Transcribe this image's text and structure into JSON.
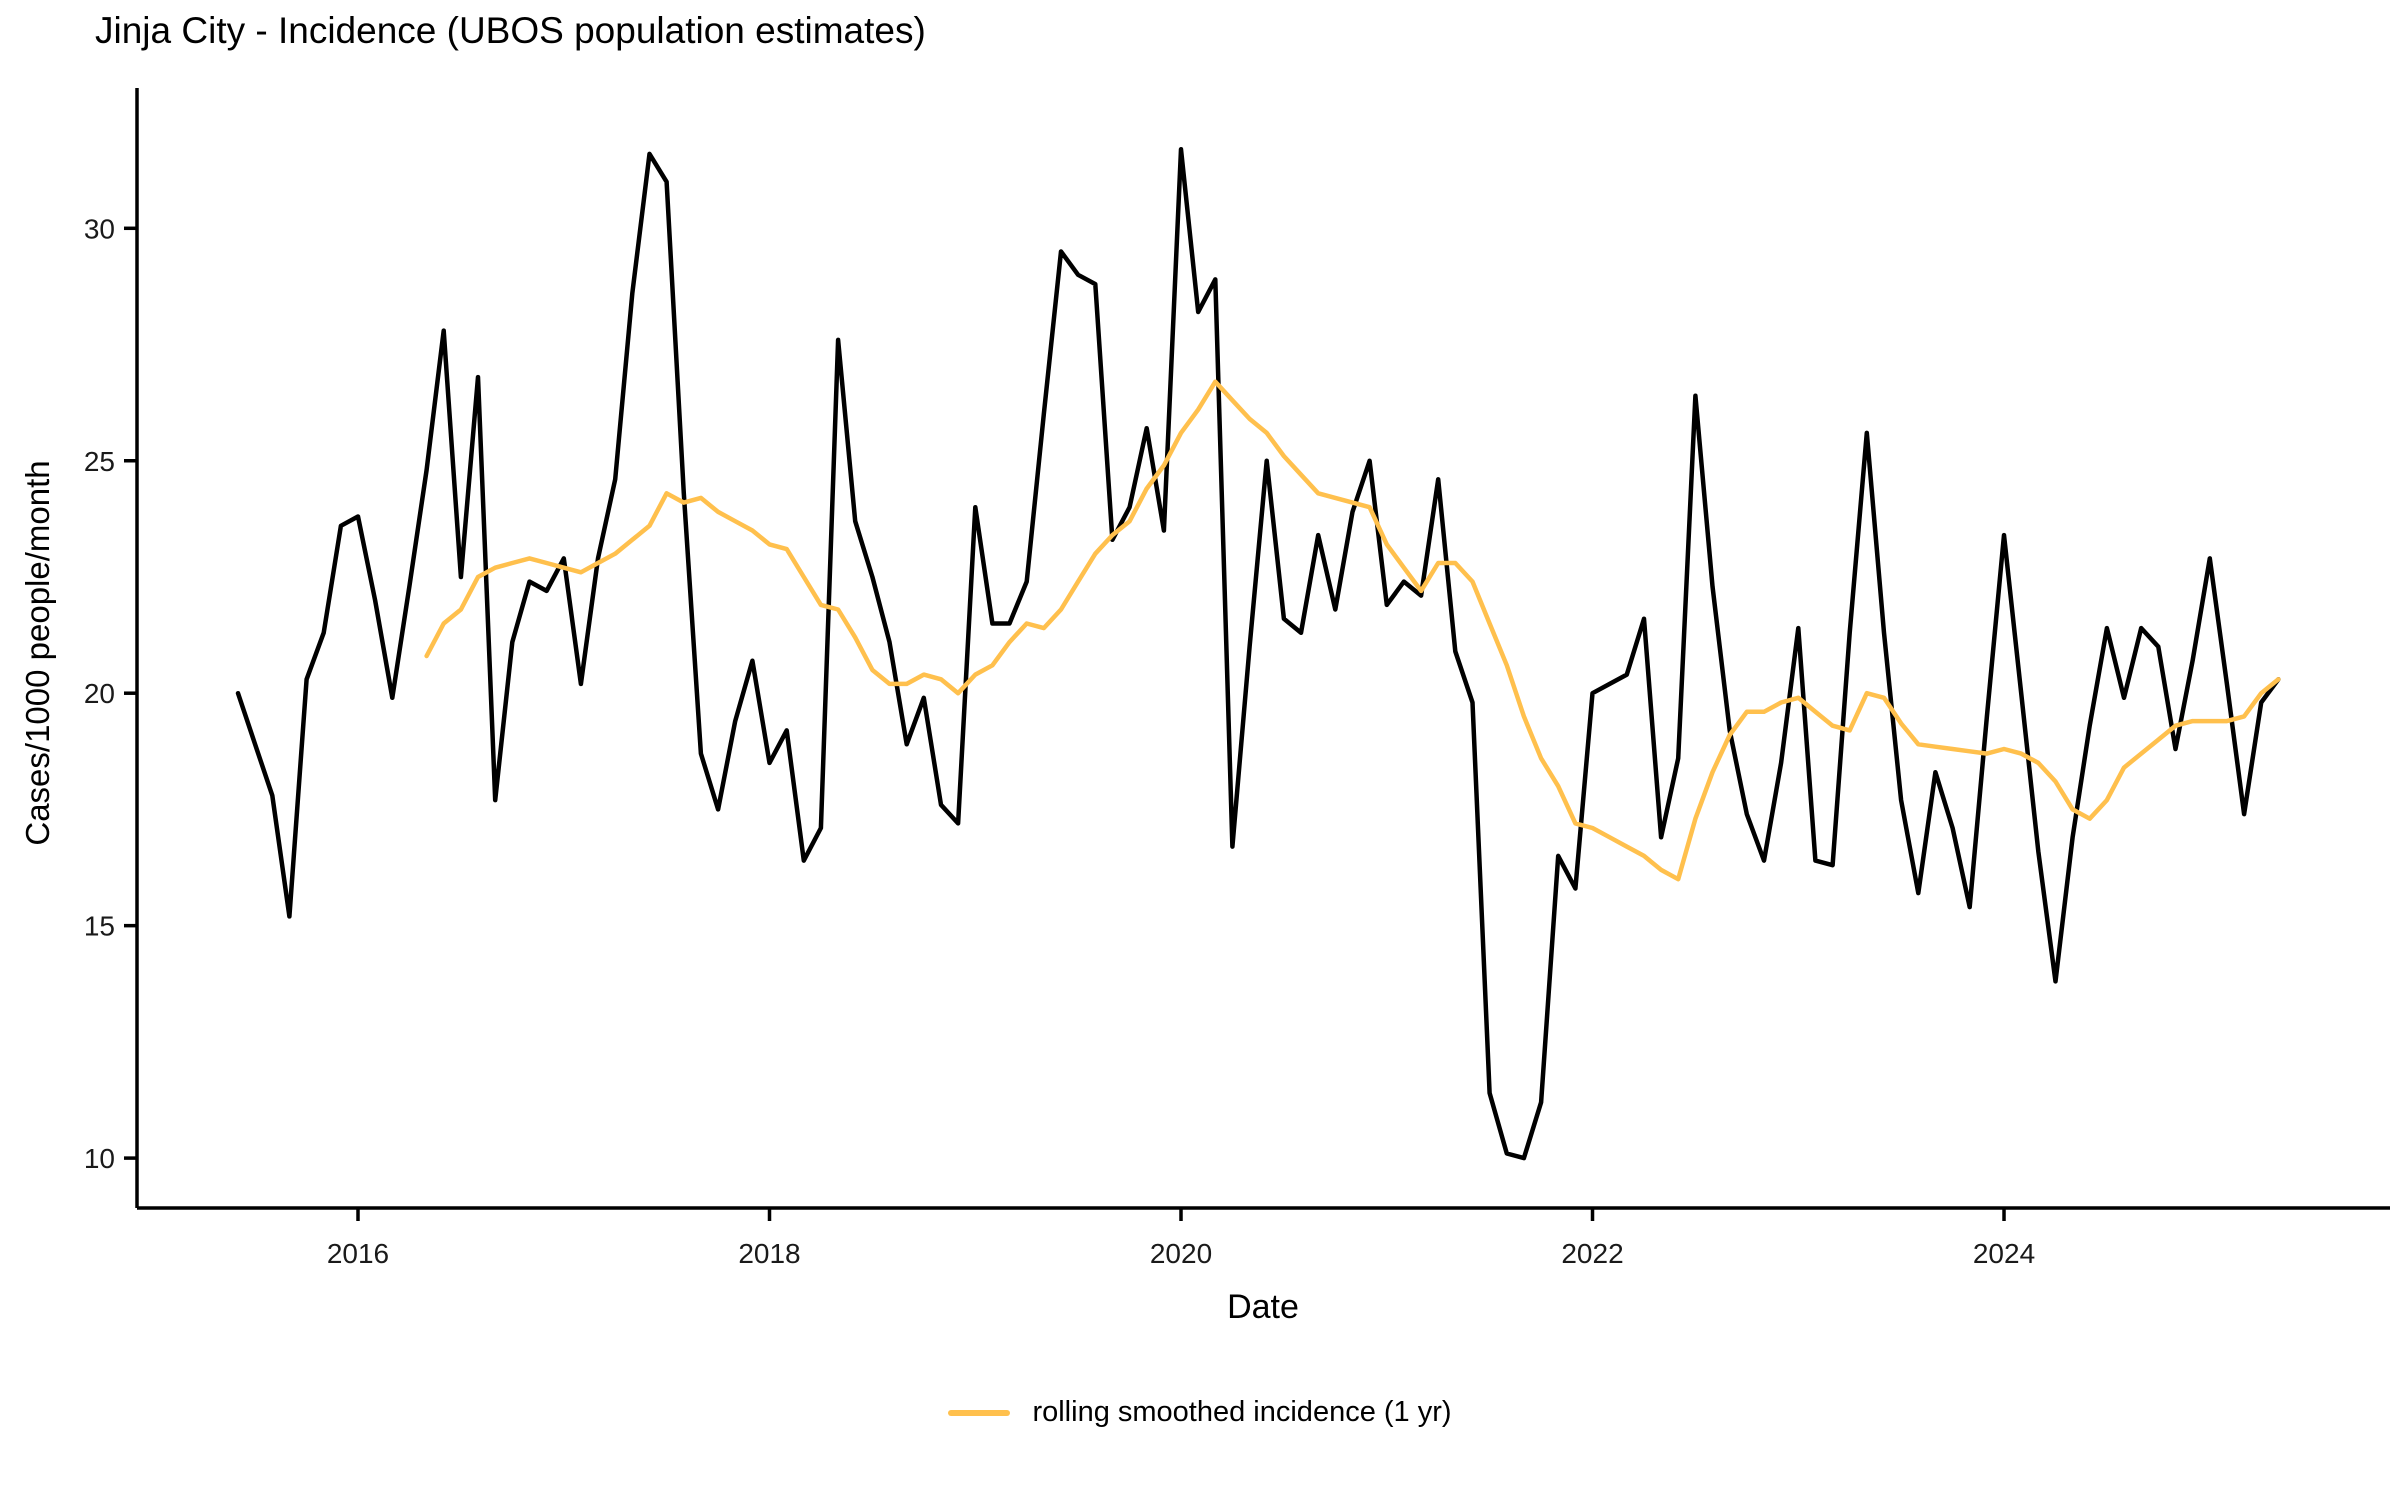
{
  "title": "Jinja City - Incidence (UBOS population estimates)",
  "axes": {
    "x": {
      "label": "Date",
      "tick_labels": [
        "2016",
        "2018",
        "2020",
        "2022",
        "2024"
      ]
    },
    "y": {
      "label": "Cases/1000 people/month",
      "tick_labels": [
        "10",
        "15",
        "20",
        "25",
        "30"
      ]
    }
  },
  "legend": {
    "label": "rolling smoothed incidence (1 yr)",
    "position": "bottom-center"
  },
  "colors": {
    "incidence_line": "#000000",
    "smoothed_line": "#FFC04D",
    "axis": "#000000",
    "tick_text": "#1a1a1a"
  },
  "chart_data": {
    "type": "line",
    "title": "Jinja City - Incidence (UBOS population estimates)",
    "xlabel": "Date",
    "ylabel": "Cases/1000 people/month",
    "grid": false,
    "legend_position": "bottom",
    "x_axis": {
      "unit": "month",
      "tick_years": [
        2016,
        2018,
        2020,
        2022,
        2024
      ]
    },
    "y_axis": {
      "ticks": [
        10,
        15,
        20,
        25,
        30
      ],
      "ylim": [
        8.9,
        33.0
      ]
    },
    "series": [
      {
        "id": "incidence",
        "name": "incidence",
        "color_key": "incidence_line",
        "stroke_width": 4.5,
        "show_in_legend": false,
        "start": "2015-06",
        "values": [
          20.0,
          18.9,
          17.8,
          15.2,
          20.3,
          21.3,
          23.6,
          23.8,
          22.0,
          19.9,
          22.3,
          24.8,
          27.8,
          22.5,
          26.8,
          17.7,
          21.1,
          22.4,
          22.2,
          22.9,
          20.2,
          22.9,
          24.6,
          28.6,
          31.6,
          31.0,
          24.3,
          18.7,
          17.5,
          19.4,
          20.7,
          18.5,
          19.2,
          16.4,
          17.1,
          27.6,
          23.7,
          22.5,
          21.1,
          18.9,
          19.9,
          17.6,
          17.2,
          24.0,
          21.5,
          21.5,
          22.4,
          26.0,
          29.5,
          29.0,
          28.8,
          23.3,
          24.0,
          25.7,
          23.5,
          31.7,
          28.2,
          28.9,
          16.7,
          21.0,
          25.0,
          21.6,
          21.3,
          23.4,
          21.8,
          23.9,
          25.0,
          21.9,
          22.4,
          22.1,
          24.6,
          20.9,
          19.8,
          11.4,
          10.1,
          10.0,
          11.2,
          16.5,
          15.8,
          20.0,
          20.2,
          20.4,
          21.6,
          16.9,
          18.6,
          26.4,
          22.3,
          19.2,
          17.4,
          16.4,
          18.5,
          21.4,
          16.4,
          16.3,
          21.3,
          25.6,
          21.3,
          17.7,
          15.7,
          18.3,
          17.1,
          15.4,
          19.5,
          23.4,
          20.0,
          16.6,
          13.8,
          16.9,
          19.3,
          21.4,
          19.9,
          21.4,
          21.0,
          18.8,
          20.7,
          22.9,
          20.2,
          17.4,
          19.8,
          20.3
        ]
      },
      {
        "id": "smoothed",
        "name": "rolling smoothed incidence (1 yr)",
        "color_key": "smoothed_line",
        "stroke_width": 4.5,
        "show_in_legend": true,
        "start": "2016-05",
        "values": [
          20.8,
          21.5,
          21.8,
          22.5,
          22.7,
          22.8,
          22.9,
          22.8,
          22.7,
          22.6,
          22.8,
          23.0,
          23.3,
          23.6,
          24.3,
          24.1,
          24.2,
          23.9,
          23.7,
          23.5,
          23.2,
          23.1,
          22.5,
          21.9,
          21.8,
          21.2,
          20.5,
          20.2,
          20.2,
          20.4,
          20.3,
          20.0,
          20.4,
          20.6,
          21.1,
          21.5,
          21.4,
          21.8,
          22.4,
          23.0,
          23.4,
          23.7,
          24.4,
          24.9,
          25.6,
          26.1,
          26.7,
          26.3,
          25.9,
          25.6,
          25.1,
          24.7,
          24.3,
          24.2,
          24.1,
          24.0,
          23.2,
          22.7,
          22.2,
          22.8,
          22.8,
          22.4,
          21.5,
          20.6,
          19.5,
          18.6,
          18.0,
          17.2,
          17.1,
          16.9,
          16.7,
          16.5,
          16.2,
          16.0,
          17.3,
          18.3,
          19.1,
          19.6,
          19.6,
          19.8,
          19.9,
          19.6,
          19.3,
          19.2,
          20.0,
          19.9,
          19.35,
          18.9,
          18.85,
          18.8,
          18.75,
          18.7,
          18.8,
          18.7,
          18.5,
          18.1,
          17.5,
          17.3,
          17.7,
          18.4,
          18.7,
          19.0,
          19.3,
          19.4,
          19.4,
          19.4,
          19.5,
          20.0,
          20.3
        ]
      }
    ]
  }
}
